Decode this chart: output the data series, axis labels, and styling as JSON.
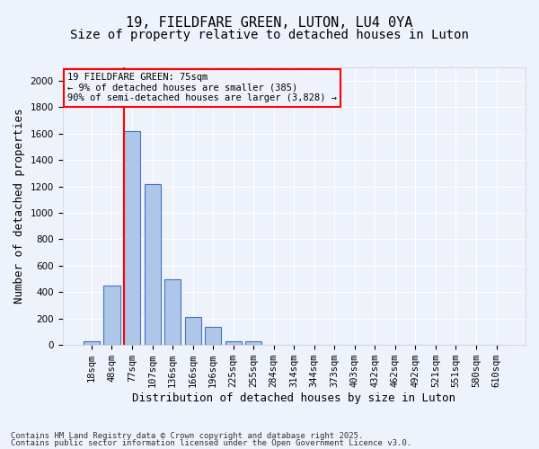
{
  "title1": "19, FIELDFARE GREEN, LUTON, LU4 0YA",
  "title2": "Size of property relative to detached houses in Luton",
  "xlabel": "Distribution of detached houses by size in Luton",
  "ylabel": "Number of detached properties",
  "categories": [
    "18sqm",
    "48sqm",
    "77sqm",
    "107sqm",
    "136sqm",
    "166sqm",
    "196sqm",
    "225sqm",
    "255sqm",
    "284sqm",
    "314sqm",
    "344sqm",
    "373sqm",
    "403sqm",
    "432sqm",
    "462sqm",
    "492sqm",
    "521sqm",
    "551sqm",
    "580sqm",
    "610sqm"
  ],
  "values": [
    30,
    450,
    1620,
    1220,
    500,
    215,
    140,
    30,
    30,
    0,
    0,
    0,
    0,
    0,
    0,
    0,
    0,
    0,
    0,
    0,
    0
  ],
  "bar_color": "#aec6e8",
  "bar_edge_color": "#4472c4",
  "red_line_x": 1.6,
  "ylim": [
    0,
    2100
  ],
  "yticks": [
    0,
    200,
    400,
    600,
    800,
    1000,
    1200,
    1400,
    1600,
    1800,
    2000
  ],
  "annotation_box_text": "19 FIELDFARE GREEN: 75sqm\n← 9% of detached houses are smaller (385)\n90% of semi-detached houses are larger (3,828) →",
  "footer1": "Contains HM Land Registry data © Crown copyright and database right 2025.",
  "footer2": "Contains public sector information licensed under the Open Government Licence v3.0.",
  "background_color": "#eef2fb",
  "grid_color": "#ffffff",
  "title_fontsize": 11,
  "subtitle_fontsize": 10,
  "axis_label_fontsize": 9,
  "tick_fontsize": 7.5,
  "footer_fontsize": 6.5
}
